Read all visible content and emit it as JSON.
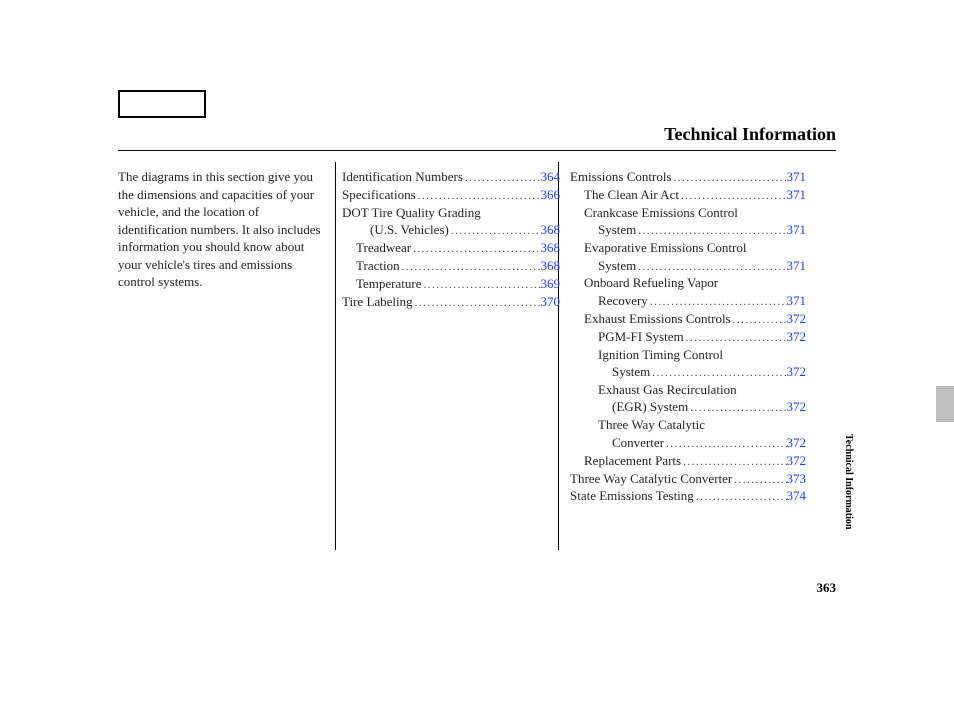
{
  "title": "Technical Information",
  "intro": "The diagrams in this section give you the dimensions and capacities of your vehicle, and the location of identification numbers. It also includes information you should know about your vehicle's tires and emissions control systems.",
  "page_number": "363",
  "side_tab_label": "Technical Information",
  "link_color": "#1a3cff",
  "text_color": "#231f20",
  "dots": "...............................................................",
  "col1": [
    {
      "label": "Identification Numbers",
      "page": "364",
      "indent": 0,
      "link": true
    },
    {
      "label": "Specifications",
      "page": "366",
      "indent": 0,
      "link": true
    },
    {
      "label": "DOT Tire Quality Grading",
      "page": "",
      "indent": 0,
      "link": false
    },
    {
      "label": "(U.S. Vehicles)",
      "page": "368",
      "indent": 2,
      "link": true
    },
    {
      "label": "Treadwear",
      "page": "368",
      "indent": 1,
      "link": true
    },
    {
      "label": "Traction",
      "page": "368",
      "indent": 1,
      "link": true
    },
    {
      "label": "Temperature",
      "page": "369",
      "indent": 1,
      "link": true
    },
    {
      "label": "Tire Labeling",
      "page": "370",
      "indent": 0,
      "link": true
    }
  ],
  "col2": [
    {
      "label": "Emissions Controls",
      "page": "371",
      "indent": 0,
      "link": true
    },
    {
      "label": "The Clean Air Act",
      "page": "371",
      "indent": 1,
      "link": true
    },
    {
      "label": "Crankcase Emissions Control",
      "page": "",
      "indent": 1,
      "link": false
    },
    {
      "label": "System",
      "page": "371",
      "indent": 2,
      "link": true
    },
    {
      "label": "Evaporative Emissions Control",
      "page": "",
      "indent": 1,
      "link": false
    },
    {
      "label": "System",
      "page": "371",
      "indent": 2,
      "link": true
    },
    {
      "label": "Onboard Refueling Vapor",
      "page": "",
      "indent": 1,
      "link": false
    },
    {
      "label": "Recovery",
      "page": "371",
      "indent": 2,
      "link": true
    },
    {
      "label": "Exhaust Emissions Controls",
      "page": "372",
      "indent": 1,
      "link": true
    },
    {
      "label": "PGM-FI System",
      "page": "372",
      "indent": 2,
      "link": true
    },
    {
      "label": "Ignition Timing Control",
      "page": "",
      "indent": 2,
      "link": false
    },
    {
      "label": "System",
      "page": "372",
      "indent": 3,
      "link": true
    },
    {
      "label": "Exhaust Gas Recirculation",
      "page": "",
      "indent": 2,
      "link": false
    },
    {
      "label": "(EGR) System",
      "page": "372",
      "indent": 3,
      "link": true
    },
    {
      "label": "Three Way Catalytic",
      "page": "",
      "indent": 2,
      "link": false
    },
    {
      "label": "Converter",
      "page": "372",
      "indent": 3,
      "link": true
    },
    {
      "label": "Replacement Parts",
      "page": "372",
      "indent": 1,
      "link": true
    },
    {
      "label": "Three Way Catalytic Converter",
      "page": "373",
      "indent": 0,
      "link": true
    },
    {
      "label": "State Emissions Testing",
      "page": "374",
      "indent": 0,
      "link": true
    }
  ]
}
